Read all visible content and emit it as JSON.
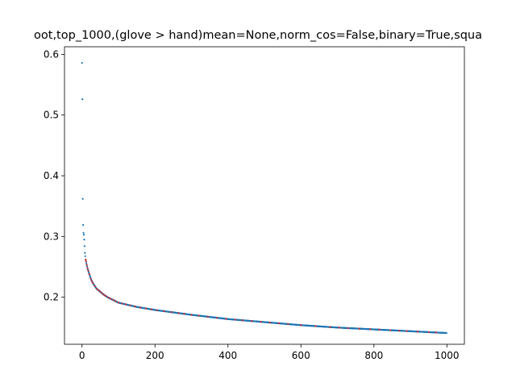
{
  "chart_data": {
    "type": "scatter",
    "title": "oot,top_1000,(glove > hand)mean=None,norm_cos=False,binary=True,squa",
    "xlabel": "",
    "ylabel": "",
    "xlim": [
      -48,
      1048
    ],
    "ylim": [
      0.1225,
      0.6125
    ],
    "xticks": [
      0,
      200,
      400,
      600,
      800,
      1000
    ],
    "yticks": [
      0.2,
      0.3,
      0.4,
      0.5,
      0.6
    ],
    "xtick_labels": [
      "0",
      "200",
      "400",
      "600",
      "800",
      "1000"
    ],
    "ytick_labels": [
      "0.2",
      "0.3",
      "0.4",
      "0.5",
      "0.6"
    ],
    "grid": false,
    "series_colors": {
      "main": "#1f77b4",
      "highlight": "#d62728"
    },
    "curve_anchors": {
      "x": [
        0,
        1,
        2,
        3,
        4,
        5,
        6,
        7,
        8,
        10,
        12,
        15,
        20,
        25,
        30,
        40,
        50,
        60,
        70,
        80,
        100,
        150,
        200,
        250,
        300,
        400,
        500,
        600,
        700,
        800,
        900,
        1000
      ],
      "y": [
        0.586,
        0.526,
        0.362,
        0.319,
        0.306,
        0.303,
        0.295,
        0.284,
        0.273,
        0.262,
        0.256,
        0.248,
        0.238,
        0.229,
        0.223,
        0.214,
        0.209,
        0.204,
        0.2,
        0.197,
        0.191,
        0.184,
        0.179,
        0.175,
        0.171,
        0.164,
        0.159,
        0.154,
        0.15,
        0.147,
        0.144,
        0.141
      ]
    },
    "highlight_x": [
      10,
      11,
      13,
      15,
      17,
      20,
      24,
      27,
      30,
      35,
      40,
      45,
      50,
      55,
      60,
      65,
      72,
      78,
      85,
      92,
      100,
      110,
      120,
      132,
      145,
      160,
      175,
      190,
      205,
      225,
      245,
      265,
      280,
      300,
      320,
      345,
      370,
      395,
      420,
      440,
      465,
      490,
      515,
      540,
      565,
      600,
      640,
      680,
      705,
      730,
      760,
      790,
      815,
      845,
      870,
      890,
      920,
      950,
      970
    ]
  }
}
